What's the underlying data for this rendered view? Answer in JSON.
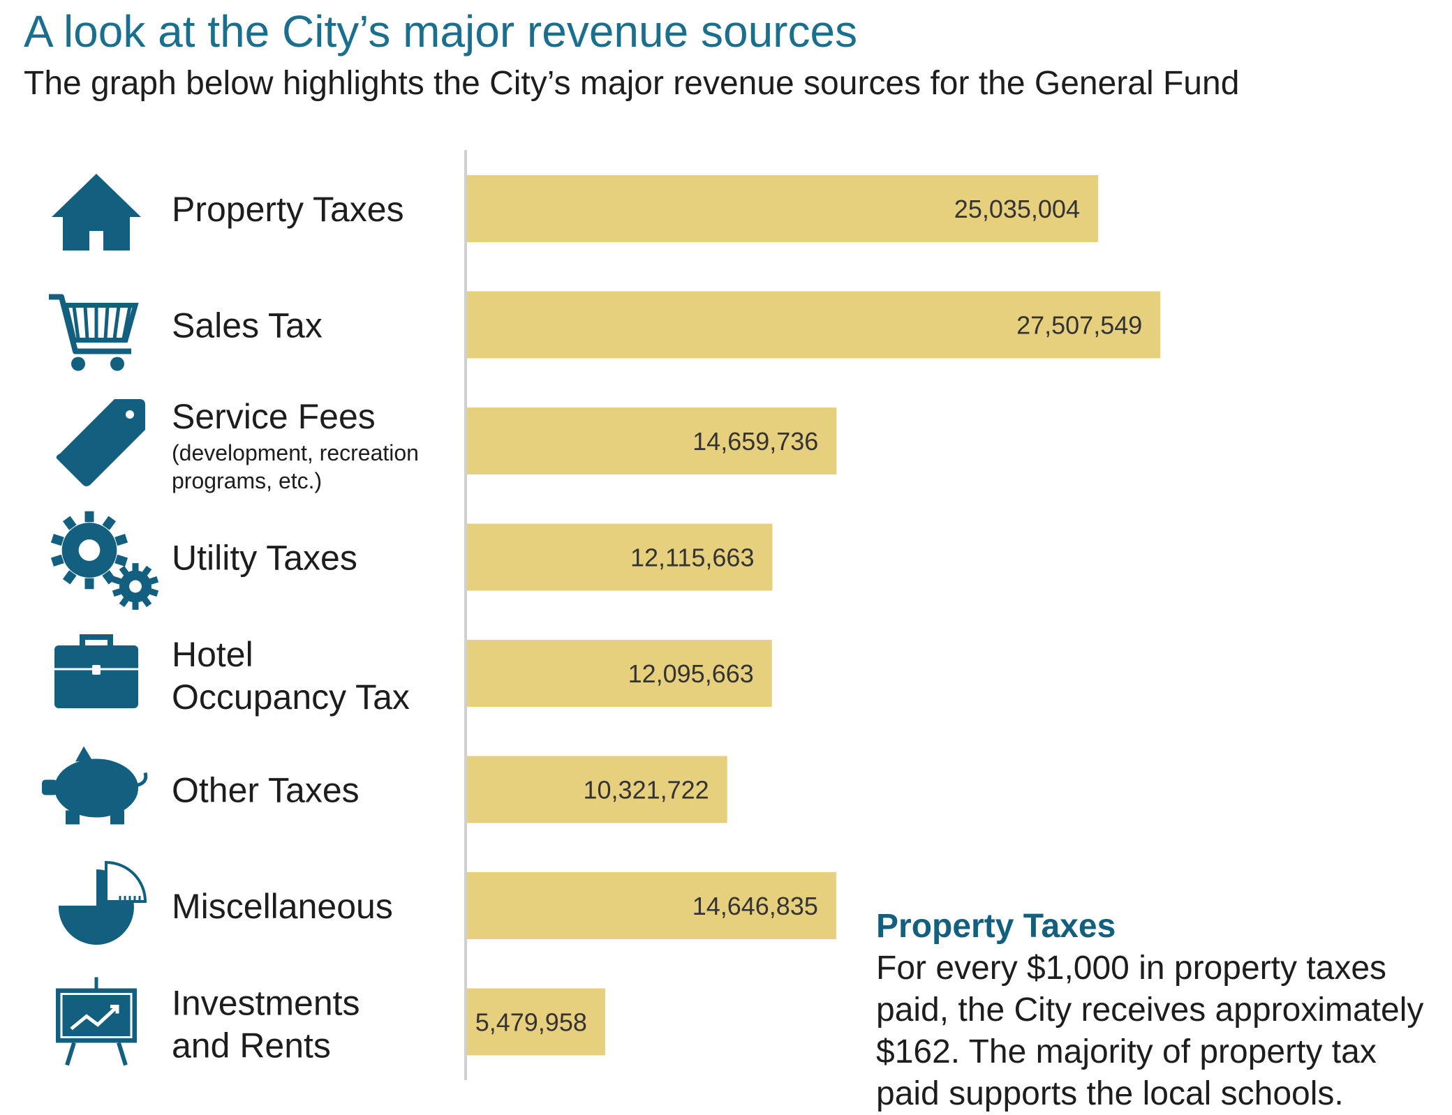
{
  "title": "A look at the City’s major revenue sources",
  "subtitle": "The graph below highlights the City’s major revenue sources for the General Fund",
  "colors": {
    "accent": "#135f7f",
    "bar": "#e6d07e",
    "title": "#1a6f8f"
  },
  "chart_data": {
    "type": "bar",
    "orientation": "horizontal",
    "title": "",
    "xlabel": "",
    "ylabel": "",
    "xlim": [
      0,
      31000000
    ],
    "grid": false,
    "legend": "none",
    "categories": [
      {
        "label_lines": [
          "Property Taxes"
        ],
        "sub_lines": [],
        "icon": "house-icon",
        "value": 25035004,
        "value_label": "25,035,004"
      },
      {
        "label_lines": [
          "Sales Tax"
        ],
        "sub_lines": [],
        "icon": "shopping-cart-icon",
        "value": 27507549,
        "value_label": "27,507,549"
      },
      {
        "label_lines": [
          "Service Fees"
        ],
        "sub_lines": [
          "(development, recreation",
          "programs, etc.)"
        ],
        "icon": "price-tag-icon",
        "value": 14659736,
        "value_label": "14,659,736"
      },
      {
        "label_lines": [
          "Utility Taxes"
        ],
        "sub_lines": [],
        "icon": "gears-icon",
        "value": 12115663,
        "value_label": "12,115,663"
      },
      {
        "label_lines": [
          "Hotel",
          "Occupancy Tax"
        ],
        "sub_lines": [],
        "icon": "briefcase-icon",
        "value": 12095663,
        "value_label": "12,095,663"
      },
      {
        "label_lines": [
          "Other Taxes"
        ],
        "sub_lines": [],
        "icon": "piggy-bank-icon",
        "value": 10321722,
        "value_label": "10,321,722"
      },
      {
        "label_lines": [
          "Miscellaneous"
        ],
        "sub_lines": [],
        "icon": "pie-chart-icon",
        "value": 14646835,
        "value_label": "14,646,835"
      },
      {
        "label_lines": [
          "Investments",
          "and Rents"
        ],
        "sub_lines": [],
        "icon": "presentation-board-icon",
        "value": 5479958,
        "value_label": "5,479,958"
      }
    ]
  },
  "note": {
    "title": "Property Taxes",
    "lines": [
      "For every $1,000 in property taxes",
      "paid, the City receives approximately",
      "$162.  The majority of property tax",
      "paid supports the local schools."
    ]
  }
}
